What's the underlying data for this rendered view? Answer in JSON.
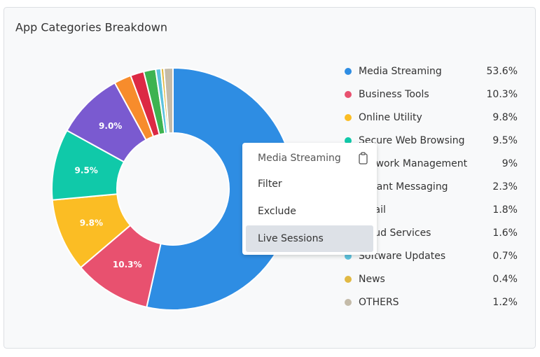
{
  "chart_data": {
    "type": "donut",
    "title": "App Categories Breakdown",
    "categories": [
      "Media Streaming",
      "Business Tools",
      "Online Utility",
      "Secure Web Browsing",
      "Network Management",
      "Instant Messaging",
      "Email",
      "Cloud Services",
      "Software Updates",
      "News",
      "OTHERS"
    ],
    "values": [
      53.6,
      10.3,
      9.8,
      9.5,
      9,
      2.3,
      1.8,
      1.6,
      0.7,
      0.4,
      1.2
    ],
    "value_labels": [
      "53.6%",
      "10.3%",
      "9.8%",
      "9.5%",
      "9%",
      "2.3%",
      "1.8%",
      "1.6%",
      "0.7%",
      "0.4%",
      "1.2%"
    ],
    "slice_labels": [
      null,
      "10.3%",
      "9.8%",
      "9.5%",
      "9.0%",
      null,
      null,
      null,
      null,
      null,
      null
    ],
    "colors": [
      "#2e8de3",
      "#e8516f",
      "#fbbd24",
      "#10c9a9",
      "#7a5ad0",
      "#f78c2c",
      "#dc2944",
      "#3db350",
      "#5ec3de",
      "#e1b944",
      "#c4bba9"
    ]
  },
  "menu": {
    "items": [
      "Media Streaming",
      "Filter",
      "Exclude",
      "Live Sessions"
    ]
  }
}
